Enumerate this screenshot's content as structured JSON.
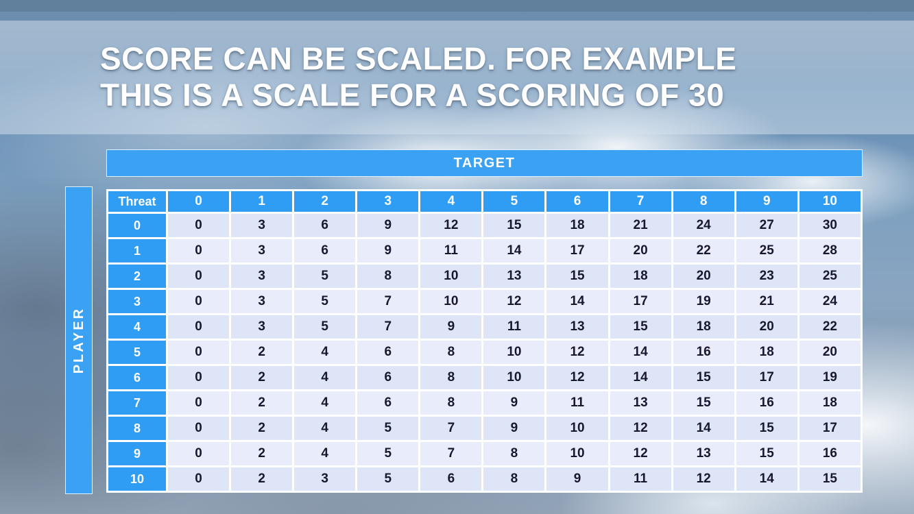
{
  "slide": {
    "title_line_1": "SCORE CAN BE SCALED. FOR EXAMPLE",
    "title_line_2": "THIS IS A SCALE FOR A SCORING OF 30"
  },
  "table": {
    "target_label": "TARGET",
    "player_label": "PLAYER",
    "corner_label": "Threat",
    "col_headers": [
      "0",
      "1",
      "2",
      "3",
      "4",
      "5",
      "6",
      "7",
      "8",
      "9",
      "10"
    ],
    "rows": [
      {
        "header": "0",
        "values": [
          0,
          3,
          6,
          9,
          12,
          15,
          18,
          21,
          24,
          27,
          30
        ]
      },
      {
        "header": "1",
        "values": [
          0,
          3,
          6,
          9,
          11,
          14,
          17,
          20,
          22,
          25,
          28
        ]
      },
      {
        "header": "2",
        "values": [
          0,
          3,
          5,
          8,
          10,
          13,
          15,
          18,
          20,
          23,
          25
        ]
      },
      {
        "header": "3",
        "values": [
          0,
          3,
          5,
          7,
          10,
          12,
          14,
          17,
          19,
          21,
          24
        ]
      },
      {
        "header": "4",
        "values": [
          0,
          3,
          5,
          7,
          9,
          11,
          13,
          15,
          18,
          20,
          22
        ]
      },
      {
        "header": "5",
        "values": [
          0,
          2,
          4,
          6,
          8,
          10,
          12,
          14,
          16,
          18,
          20
        ]
      },
      {
        "header": "6",
        "values": [
          0,
          2,
          4,
          6,
          8,
          10,
          12,
          14,
          15,
          17,
          19
        ]
      },
      {
        "header": "7",
        "values": [
          0,
          2,
          4,
          6,
          8,
          9,
          11,
          13,
          15,
          16,
          18
        ]
      },
      {
        "header": "8",
        "values": [
          0,
          2,
          4,
          5,
          7,
          9,
          10,
          12,
          14,
          15,
          17
        ]
      },
      {
        "header": "9",
        "values": [
          0,
          2,
          4,
          5,
          7,
          8,
          10,
          12,
          13,
          15,
          16
        ]
      },
      {
        "header": "10",
        "values": [
          0,
          2,
          3,
          5,
          6,
          8,
          9,
          11,
          12,
          14,
          15
        ]
      }
    ]
  },
  "colors": {
    "header_blue": "#2f9df3",
    "bar_blue": "#3ba1f2",
    "row_dark": "#dee5f7",
    "row_light": "#e9edfb",
    "title_text": "#ffffff"
  },
  "chart_data": {
    "type": "table",
    "x_label": "TARGET",
    "y_label": "PLAYER",
    "corner_label": "Threat",
    "columns": [
      "Threat",
      "0",
      "1",
      "2",
      "3",
      "4",
      "5",
      "6",
      "7",
      "8",
      "9",
      "10"
    ],
    "rows": [
      [
        "0",
        0,
        3,
        6,
        9,
        12,
        15,
        18,
        21,
        24,
        27,
        30
      ],
      [
        "1",
        0,
        3,
        6,
        9,
        11,
        14,
        17,
        20,
        22,
        25,
        28
      ],
      [
        "2",
        0,
        3,
        5,
        8,
        10,
        13,
        15,
        18,
        20,
        23,
        25
      ],
      [
        "3",
        0,
        3,
        5,
        7,
        10,
        12,
        14,
        17,
        19,
        21,
        24
      ],
      [
        "4",
        0,
        3,
        5,
        7,
        9,
        11,
        13,
        15,
        18,
        20,
        22
      ],
      [
        "5",
        0,
        2,
        4,
        6,
        8,
        10,
        12,
        14,
        16,
        18,
        20
      ],
      [
        "6",
        0,
        2,
        4,
        6,
        8,
        10,
        12,
        14,
        15,
        17,
        19
      ],
      [
        "7",
        0,
        2,
        4,
        6,
        8,
        9,
        11,
        13,
        15,
        16,
        18
      ],
      [
        "8",
        0,
        2,
        4,
        5,
        7,
        9,
        10,
        12,
        14,
        15,
        17
      ],
      [
        "9",
        0,
        2,
        4,
        5,
        7,
        8,
        10,
        12,
        13,
        15,
        16
      ],
      [
        "10",
        0,
        2,
        3,
        5,
        6,
        8,
        9,
        11,
        12,
        14,
        15
      ]
    ]
  }
}
